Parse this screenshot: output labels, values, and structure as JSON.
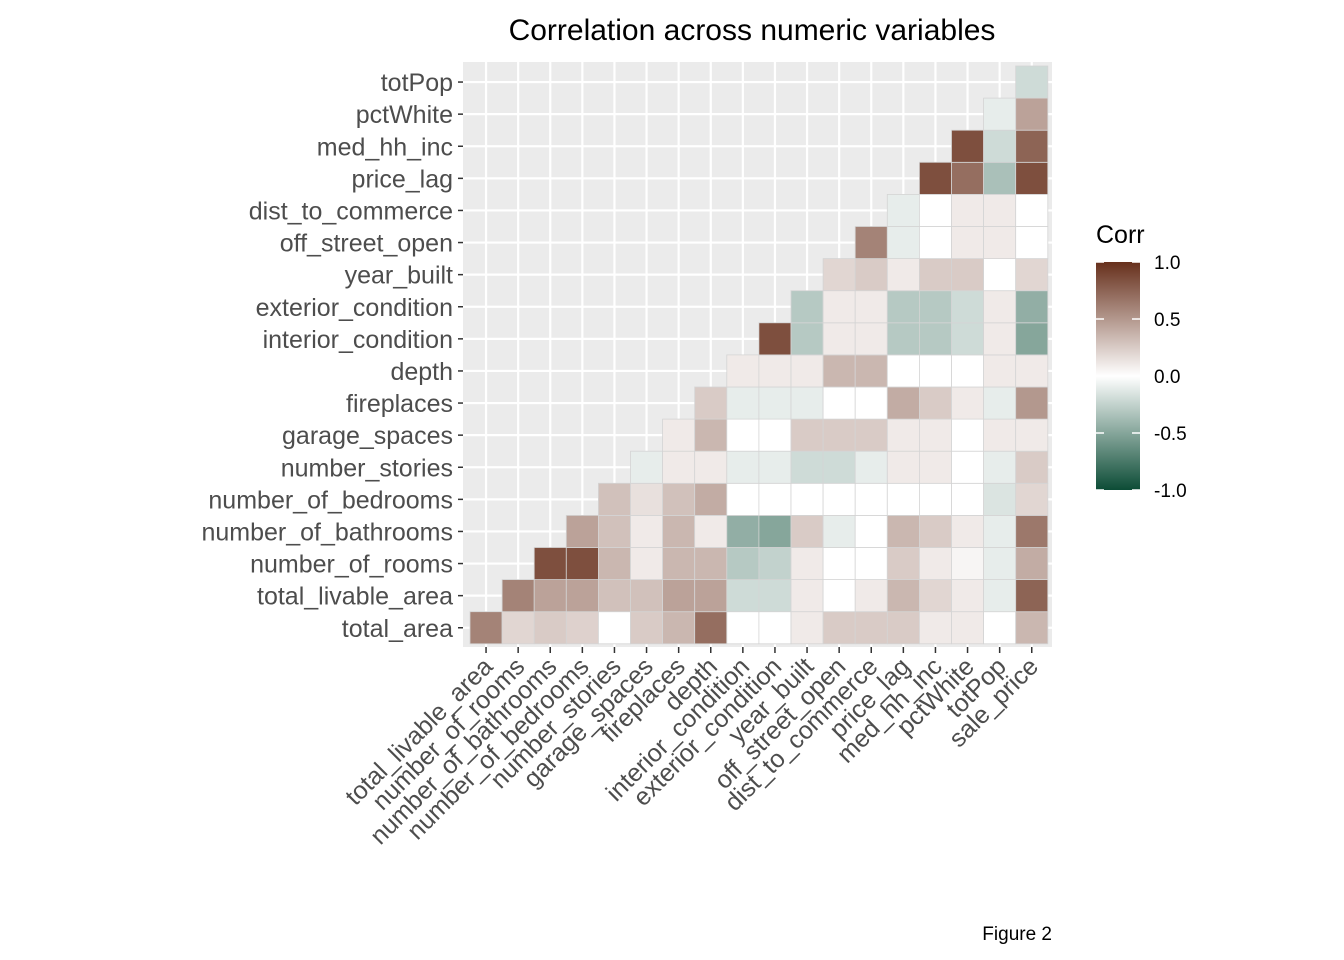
{
  "chart_data": {
    "type": "heatmap",
    "title": "Correlation across numeric variables",
    "caption": "Figure 2",
    "x_categories": [
      "total_livable_area",
      "number_of_rooms",
      "number_of_bathrooms",
      "number_of_bedrooms",
      "number_stories",
      "garage_spaces",
      "fireplaces",
      "depth",
      "interior_condition",
      "exterior_condition",
      "year_built",
      "off_street_open",
      "dist_to_commerce",
      "price_lag",
      "med_hh_inc",
      "pctWhite",
      "totPop",
      "sale_price"
    ],
    "y_categories": [
      "total_area",
      "total_livable_area",
      "number_of_rooms",
      "number_of_bathrooms",
      "number_of_bedrooms",
      "number_stories",
      "garage_spaces",
      "fireplaces",
      "depth",
      "interior_condition",
      "exterior_condition",
      "year_built",
      "off_street_open",
      "dist_to_commerce",
      "price_lag",
      "med_hh_inc",
      "pctWhite",
      "totPop"
    ],
    "values": [
      [
        0.6,
        0.2,
        0.25,
        0.22,
        0.0,
        0.25,
        0.35,
        0.7,
        0.0,
        0.0,
        0.1,
        0.25,
        0.25,
        0.25,
        0.1,
        0.1,
        0.0,
        0.35
      ],
      [
        null,
        0.6,
        0.45,
        0.45,
        0.3,
        0.3,
        0.45,
        0.45,
        -0.2,
        -0.2,
        0.1,
        0.0,
        0.1,
        0.35,
        0.2,
        0.1,
        -0.1,
        0.75
      ],
      [
        null,
        null,
        0.85,
        0.85,
        0.35,
        0.1,
        0.35,
        0.35,
        -0.3,
        -0.25,
        0.1,
        0.0,
        0.0,
        0.25,
        0.1,
        0.05,
        -0.1,
        0.4
      ],
      [
        null,
        null,
        null,
        0.45,
        0.3,
        0.1,
        0.35,
        0.1,
        -0.45,
        -0.5,
        0.25,
        -0.1,
        0.0,
        0.35,
        0.25,
        0.1,
        -0.1,
        0.65
      ],
      [
        null,
        null,
        null,
        null,
        0.3,
        0.15,
        0.3,
        0.4,
        0.0,
        0.0,
        0.0,
        0.0,
        0.0,
        0.0,
        0.0,
        0.0,
        -0.15,
        0.2
      ],
      [
        null,
        null,
        null,
        null,
        null,
        -0.1,
        0.1,
        0.1,
        -0.1,
        -0.1,
        -0.2,
        -0.2,
        -0.1,
        0.1,
        0.1,
        0.0,
        -0.1,
        0.25
      ],
      [
        null,
        null,
        null,
        null,
        null,
        null,
        0.1,
        0.35,
        0.0,
        0.0,
        0.25,
        0.25,
        0.25,
        0.1,
        0.1,
        0.0,
        0.1,
        0.1
      ],
      [
        null,
        null,
        null,
        null,
        null,
        null,
        null,
        0.25,
        -0.1,
        -0.1,
        -0.1,
        0.0,
        0.0,
        0.4,
        0.25,
        0.1,
        -0.1,
        0.5
      ],
      [
        null,
        null,
        null,
        null,
        null,
        null,
        null,
        null,
        0.1,
        0.1,
        0.1,
        0.35,
        0.35,
        0.0,
        0.0,
        0.0,
        0.1,
        0.1
      ],
      [
        null,
        null,
        null,
        null,
        null,
        null,
        null,
        null,
        null,
        0.85,
        -0.3,
        0.1,
        0.1,
        -0.3,
        -0.3,
        -0.2,
        0.1,
        -0.5
      ],
      [
        null,
        null,
        null,
        null,
        null,
        null,
        null,
        null,
        null,
        null,
        -0.3,
        0.1,
        0.1,
        -0.3,
        -0.3,
        -0.2,
        0.1,
        -0.45
      ],
      [
        null,
        null,
        null,
        null,
        null,
        null,
        null,
        null,
        null,
        null,
        null,
        0.2,
        0.25,
        0.1,
        0.25,
        0.25,
        0.0,
        0.2
      ],
      [
        null,
        null,
        null,
        null,
        null,
        null,
        null,
        null,
        null,
        null,
        null,
        null,
        0.6,
        -0.1,
        0.0,
        0.1,
        0.1,
        0.0
      ],
      [
        null,
        null,
        null,
        null,
        null,
        null,
        null,
        null,
        null,
        null,
        null,
        null,
        null,
        -0.1,
        0.0,
        0.1,
        0.1,
        0.0
      ],
      [
        null,
        null,
        null,
        null,
        null,
        null,
        null,
        null,
        null,
        null,
        null,
        null,
        null,
        null,
        0.85,
        0.7,
        -0.35,
        0.85
      ],
      [
        null,
        null,
        null,
        null,
        null,
        null,
        null,
        null,
        null,
        null,
        null,
        null,
        null,
        null,
        null,
        0.85,
        -0.2,
        0.75
      ],
      [
        null,
        null,
        null,
        null,
        null,
        null,
        null,
        null,
        null,
        null,
        null,
        null,
        null,
        null,
        null,
        null,
        -0.1,
        0.45
      ],
      [
        null,
        null,
        null,
        null,
        null,
        null,
        null,
        null,
        null,
        null,
        null,
        null,
        null,
        null,
        null,
        null,
        null,
        -0.2
      ]
    ],
    "legend": {
      "title": "Corr",
      "ticks": [
        1.0,
        0.5,
        0.0,
        -0.5,
        -1.0
      ],
      "tick_labels": [
        "1.0",
        "0.5",
        "0.0",
        "-0.5",
        "-1.0"
      ],
      "placement": "right"
    },
    "colors": {
      "high": "#67301c",
      "mid": "#ffffff",
      "low": "#0c4c36"
    },
    "scale_range": [
      -1,
      1
    ],
    "grid": true
  }
}
